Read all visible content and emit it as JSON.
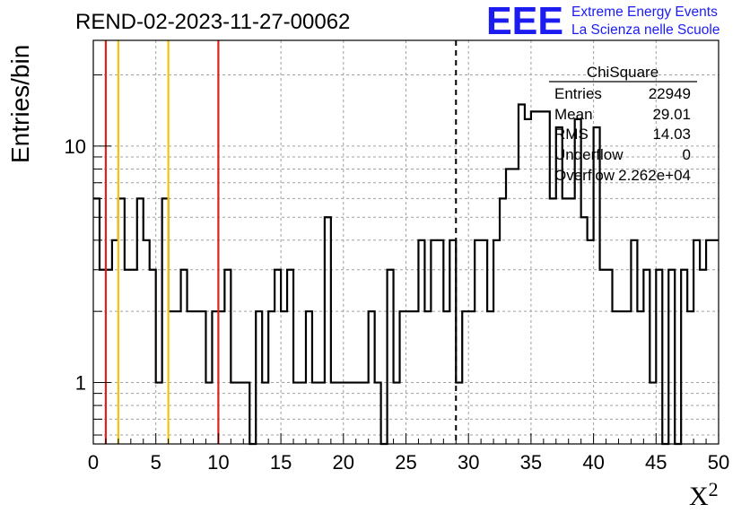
{
  "header": {
    "run_title": "REND-02-2023-11-27-00062",
    "logo_text": "EEE",
    "logo_line1": "Extreme Energy Events",
    "logo_line2": "La Scienza nelle Scuole"
  },
  "colors": {
    "logo": "#1c1cf0",
    "red_line": "#e0201c",
    "yellow_line": "#f2c40f",
    "histogram": "#000000",
    "grid": "#a0a0a0"
  },
  "stats": {
    "title": "ChiSquare",
    "rows": [
      {
        "label": "Entries",
        "value": "22949"
      },
      {
        "label": "Mean",
        "value": "29.01"
      },
      {
        "label": "RMS",
        "value": "14.03"
      },
      {
        "label": "Underflow",
        "value": "0"
      },
      {
        "label": "Overflow",
        "value": "2.262e+04"
      }
    ]
  },
  "chart_data": {
    "type": "histogram",
    "title": "REND-02-2023-11-27-00062",
    "xlabel": "X²",
    "ylabel": "Entries/bin",
    "xlim": [
      0,
      50
    ],
    "ylim": [
      0.55,
      28
    ],
    "yscale": "log",
    "grid": true,
    "x_ticks": [
      0,
      5,
      10,
      15,
      20,
      25,
      30,
      35,
      40,
      45,
      50
    ],
    "y_tick_labels": [
      1,
      10
    ],
    "bin_width": 0.5,
    "bin_start": 0,
    "counts": [
      6,
      3,
      3,
      4,
      6,
      3,
      3,
      6,
      4,
      3,
      1,
      6,
      2,
      2,
      3,
      2,
      2,
      2,
      1,
      2,
      2,
      3,
      1,
      1,
      1,
      0,
      2,
      1,
      2,
      3,
      2,
      3,
      1,
      1,
      2,
      1,
      1,
      5,
      1,
      1,
      1,
      1,
      1,
      1,
      2,
      1,
      0,
      3,
      1,
      2,
      2,
      2,
      4,
      2,
      4,
      4,
      2,
      4,
      1,
      2,
      2,
      4,
      4,
      2,
      4,
      6,
      8,
      8,
      15,
      13,
      14,
      14,
      14,
      6,
      12,
      6,
      6,
      13,
      5,
      4,
      12,
      3,
      3,
      2,
      2,
      2,
      4,
      2,
      3,
      1,
      3,
      0,
      3,
      0,
      3,
      2,
      4,
      3,
      4,
      4
    ],
    "vertical_lines": [
      {
        "x": 1,
        "color": "red",
        "style": "solid"
      },
      {
        "x": 2,
        "color": "yellow",
        "style": "solid"
      },
      {
        "x": 6,
        "color": "yellow",
        "style": "solid"
      },
      {
        "x": 10,
        "color": "red",
        "style": "solid"
      },
      {
        "x": 29,
        "color": "black",
        "style": "dashed"
      }
    ]
  }
}
